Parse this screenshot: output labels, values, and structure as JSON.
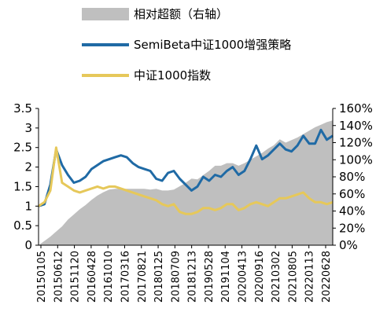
{
  "chart_data": {
    "type": "line",
    "legend_position": "top",
    "grid": false,
    "x_labels": [
      "20150105",
      "20150612",
      "20151120",
      "20160428",
      "20161010",
      "20170316",
      "20170821",
      "20180125",
      "20180709",
      "20181213",
      "20190528",
      "20191104",
      "20200413",
      "20200916",
      "20210302",
      "20210805",
      "20220113",
      "20220628"
    ],
    "ylim_left": [
      0,
      3.5
    ],
    "yticks_left": [
      "0",
      "0.5",
      "1",
      "1.5",
      "2",
      "2.5",
      "3",
      "3.5"
    ],
    "ylim_right": [
      0,
      1.6
    ],
    "yticks_right": [
      "0%",
      "20%",
      "40%",
      "60%",
      "80%",
      "100%",
      "120%",
      "140%",
      "160%"
    ],
    "series": [
      {
        "name": "相对超额（右轴）",
        "type": "area",
        "axis": "right",
        "color": "#bfbfbf",
        "values": [
          0.0,
          0.05,
          0.1,
          0.16,
          0.22,
          0.3,
          0.36,
          0.42,
          0.47,
          0.53,
          0.58,
          0.62,
          0.65,
          0.66,
          0.66,
          0.66,
          0.66,
          0.66,
          0.66,
          0.65,
          0.66,
          0.64,
          0.64,
          0.65,
          0.69,
          0.73,
          0.78,
          0.77,
          0.82,
          0.87,
          0.93,
          0.93,
          0.96,
          0.96,
          0.93,
          0.96,
          1.0,
          1.04,
          1.08,
          1.13,
          1.17,
          1.24,
          1.2,
          1.23,
          1.26,
          1.3,
          1.34,
          1.38,
          1.41,
          1.44,
          1.46
        ]
      },
      {
        "name": "SemiBeta中证1000增强策略",
        "type": "line",
        "axis": "left",
        "color": "#1f6aa5",
        "values": [
          1.0,
          1.05,
          1.55,
          2.45,
          2.05,
          1.8,
          1.6,
          1.65,
          1.75,
          1.95,
          2.05,
          2.15,
          2.2,
          2.25,
          2.3,
          2.25,
          2.1,
          2.0,
          1.95,
          1.9,
          1.7,
          1.65,
          1.85,
          1.9,
          1.7,
          1.55,
          1.4,
          1.5,
          1.75,
          1.65,
          1.8,
          1.75,
          1.9,
          2.0,
          1.8,
          1.9,
          2.2,
          2.55,
          2.2,
          2.3,
          2.45,
          2.6,
          2.45,
          2.4,
          2.55,
          2.8,
          2.6,
          2.6,
          2.95,
          2.7,
          2.8
        ]
      },
      {
        "name": "中证1000指数",
        "type": "line",
        "axis": "left",
        "color": "#e6c85a",
        "values": [
          1.0,
          1.1,
          1.4,
          2.5,
          1.6,
          1.5,
          1.4,
          1.35,
          1.4,
          1.45,
          1.5,
          1.45,
          1.5,
          1.5,
          1.45,
          1.4,
          1.35,
          1.3,
          1.25,
          1.2,
          1.15,
          1.05,
          1.0,
          1.05,
          0.85,
          0.8,
          0.8,
          0.85,
          0.95,
          0.95,
          0.9,
          0.95,
          1.05,
          1.05,
          0.9,
          0.95,
          1.05,
          1.1,
          1.05,
          1.0,
          1.1,
          1.2,
          1.2,
          1.25,
          1.3,
          1.35,
          1.2,
          1.1,
          1.1,
          1.05,
          1.1
        ]
      }
    ]
  }
}
